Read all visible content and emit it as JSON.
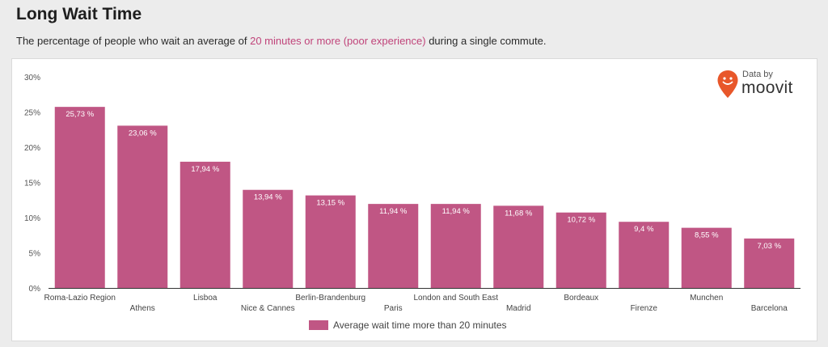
{
  "header": {
    "title": "Long Wait Time",
    "subtitle_pre": "The percentage of people who wait an average of ",
    "subtitle_highlight": "20 minutes or more (poor experience)",
    "subtitle_post": " during a single commute."
  },
  "brand": {
    "data_by": "Data by",
    "name": "moovit"
  },
  "colors": {
    "bar": "#c05684",
    "accent": "#c0447a",
    "pin": "#e8572a"
  },
  "chart_data": {
    "type": "bar",
    "categories": [
      "Roma-Lazio Region",
      "Athens",
      "Lisboa",
      "Nice & Cannes",
      "Berlin-Brandenburg",
      "Paris",
      "London and South East",
      "Madrid",
      "Bordeaux",
      "Firenze",
      "Munchen",
      "Barcelona"
    ],
    "series": [
      {
        "name": "Average wait time more than 20 minutes",
        "values": [
          25.73,
          23.06,
          17.94,
          13.94,
          13.15,
          11.94,
          11.94,
          11.68,
          10.72,
          9.4,
          8.55,
          7.03
        ],
        "labels": [
          "25,73 %",
          "23,06 %",
          "17,94 %",
          "13,94 %",
          "13,15 %",
          "11,94 %",
          "11,94 %",
          "11,68 %",
          "10,72 %",
          "9,4 %",
          "8,55 %",
          "7,03 %"
        ]
      }
    ],
    "yticks": [
      "0%",
      "5%",
      "10%",
      "15%",
      "20%",
      "25%",
      "30%"
    ],
    "ylim": [
      0,
      30
    ],
    "grid": false,
    "legend_position": "bottom"
  }
}
